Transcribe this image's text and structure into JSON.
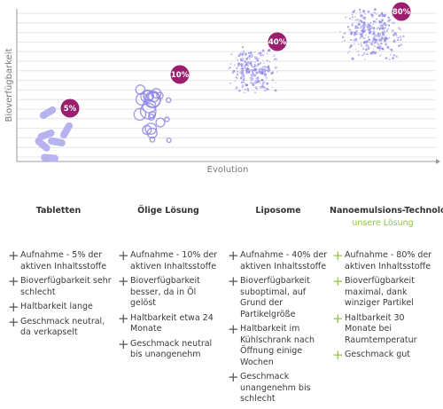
{
  "chart_data": {
    "type": "scatter",
    "xlabel": "Evolution",
    "ylabel": "Bioverfügbarkeit",
    "grid": true,
    "categories": [
      "Tabletten",
      "Ölige Lösung",
      "Liposome",
      "Nanoemulsions-Technologie"
    ],
    "values": [
      5,
      10,
      40,
      80
    ],
    "labels": [
      "5%",
      "10%",
      "40%",
      "80%"
    ]
  },
  "colors": {
    "badge": "#9b1f6e",
    "particle": "#b7b2f0",
    "particle_dark": "#8c84e4",
    "plus_default": "#555555",
    "plus_highlight": "#8dc63f"
  },
  "columns": [
    {
      "title": "Tabletten",
      "subtitle": "",
      "highlight": false,
      "items": [
        "Aufnahme - 5% der aktiven Inhaltsstoffe",
        "Bioverfügbarkeit sehr schlecht",
        "Haltbarkeit lange",
        "Geschmack neutral, da verkapselt"
      ]
    },
    {
      "title": "Ölige Lösung",
      "subtitle": "",
      "highlight": false,
      "items": [
        "Aufnahme - 10% der aktiven Inhaltsstoffe",
        "Bioverfügbarkeit besser, da in Öl gelöst",
        "Haltbarkeit etwa 24 Monate",
        "Geschmack neutral bis unangenehm"
      ]
    },
    {
      "title": "Liposome",
      "subtitle": "",
      "highlight": false,
      "items": [
        "Aufnahme - 40% der aktiven Inhaltsstoffe",
        "Bioverfügbarkeit suboptimal, auf Grund der Partikelgröße",
        "Haltbarkeit im Kühlschrank nach Öffnung einige Wochen",
        "Geschmack unangenehm bis schlecht"
      ]
    },
    {
      "title": "Nanoemulsions-Technologie",
      "subtitle": "unsere Lösung",
      "highlight": true,
      "items": [
        "Aufnahme - 80% der aktiven Inhaltsstoffe",
        "Bioverfügbarkeit maximal, dank winziger Partikel",
        "Haltbarkeit 30 Monate bei Raumtemperatur",
        "Geschmack gut"
      ]
    }
  ]
}
